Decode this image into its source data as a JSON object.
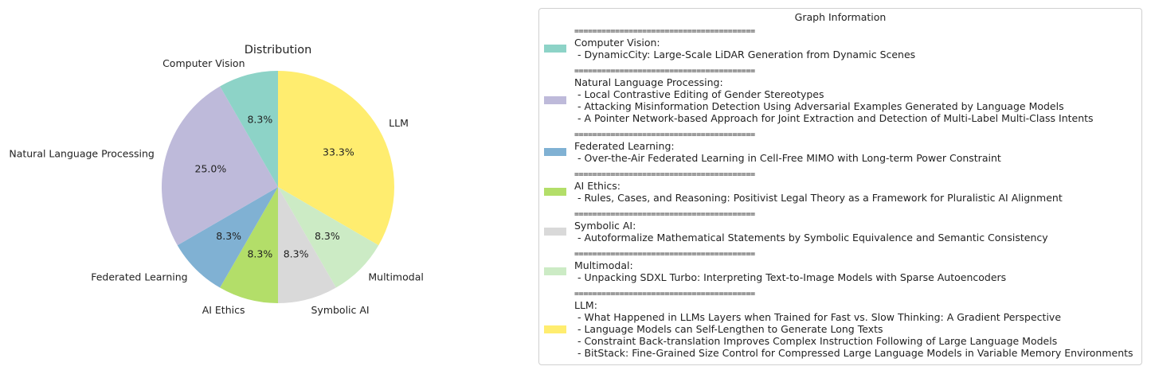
{
  "chart_data": {
    "type": "pie",
    "title": "Distribution",
    "categories": [
      "LLM",
      "Multimodal",
      "Symbolic AI",
      "AI Ethics",
      "Federated Learning",
      "Natural Language Processing",
      "Computer Vision"
    ],
    "values": [
      33.3,
      8.3,
      8.3,
      8.3,
      8.3,
      25.0,
      8.3
    ],
    "value_labels": [
      "33.3%",
      "8.3%",
      "8.3%",
      "8.3%",
      "8.3%",
      "25.0%",
      "8.3%"
    ],
    "colors": [
      "#ffed6f",
      "#ccebc5",
      "#d9d9d9",
      "#b3de69",
      "#80b1d3",
      "#bebada",
      "#8dd3c7"
    ],
    "start_angle_deg": 90,
    "direction": "clockwise"
  },
  "legend": {
    "title": "Graph Information",
    "separator": "========================================",
    "entries": [
      {
        "name": "Computer Vision:",
        "color": "#8dd3c7",
        "items": [
          "- DynamicCity: Large-Scale LiDAR Generation from Dynamic Scenes"
        ]
      },
      {
        "name": "Natural Language Processing:",
        "color": "#bebada",
        "items": [
          "- Local Contrastive Editing of Gender Stereotypes",
          "- Attacking Misinformation Detection Using Adversarial Examples Generated by Language Models",
          "- A Pointer Network-based Approach for Joint Extraction and Detection of Multi-Label Multi-Class Intents"
        ]
      },
      {
        "name": "Federated Learning:",
        "color": "#80b1d3",
        "items": [
          "- Over-the-Air Federated Learning in Cell-Free MIMO with Long-term Power Constraint"
        ]
      },
      {
        "name": "AI Ethics:",
        "color": "#b3de69",
        "items": [
          "- Rules, Cases, and Reasoning: Positivist Legal Theory as a Framework for Pluralistic AI Alignment"
        ]
      },
      {
        "name": "Symbolic AI:",
        "color": "#d9d9d9",
        "items": [
          "- Autoformalize Mathematical Statements by Symbolic Equivalence and Semantic Consistency"
        ]
      },
      {
        "name": "Multimodal:",
        "color": "#ccebc5",
        "items": [
          "- Unpacking SDXL Turbo: Interpreting Text-to-Image Models with Sparse Autoencoders"
        ]
      },
      {
        "name": "LLM:",
        "color": "#ffed6f",
        "items": [
          "- What Happened in LLMs Layers when Trained for Fast vs. Slow Thinking: A Gradient Perspective",
          "- Language Models can Self-Lengthen to Generate Long Texts",
          "- Constraint Back-translation Improves Complex Instruction Following of Large Language Models",
          "- BitStack: Fine-Grained Size Control for Compressed Large Language Models in Variable Memory Environments"
        ]
      }
    ]
  }
}
